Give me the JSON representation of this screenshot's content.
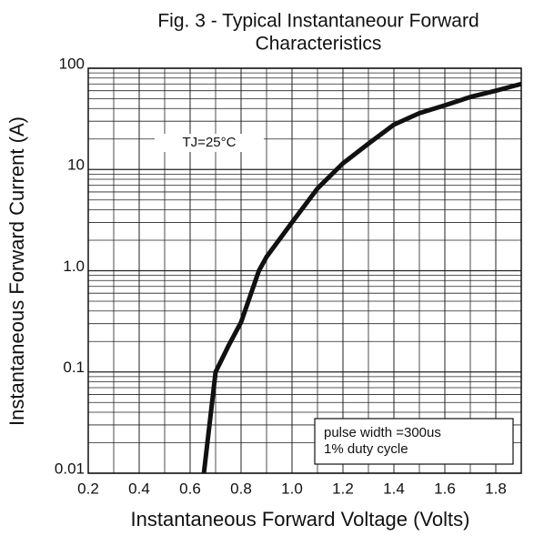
{
  "chart_data": {
    "type": "line",
    "title": [
      "Fig. 3 - Typical Instantaneour Forward",
      "Characteristics"
    ],
    "x_label": "Instantaneous Forward Voltage (Volts)",
    "y_label": "Instantaneous Forward Current (A)",
    "annotations": [
      "TJ=25°C",
      "pulse width =300us",
      "1% duty cycle"
    ],
    "xlim": [
      0.2,
      1.9
    ],
    "xticks": [
      0.2,
      0.4,
      0.6,
      0.8,
      {
        "value": 1,
        "label": "1.0"
      },
      1.2,
      1.4,
      1.6,
      1.8
    ],
    "ylim": [
      0.01,
      100
    ],
    "yticks": [
      0.01,
      0.1,
      {
        "value": 1,
        "label": "1.0"
      },
      10,
      100
    ],
    "log_y": true,
    "grid": true,
    "series": [
      {
        "color": "#111111",
        "x": [
          0.654,
          0.7,
          0.75,
          0.8,
          0.87,
          0.9,
          1.0,
          1.1,
          1.2,
          1.3,
          1.4,
          1.5,
          1.6,
          1.7,
          1.8,
          1.9
        ],
        "values": [
          0.01,
          0.1,
          0.18,
          0.31,
          1,
          1.37,
          3,
          6.5,
          11.5,
          18,
          27.7,
          36,
          43,
          52,
          60,
          70
        ]
      }
    ]
  }
}
